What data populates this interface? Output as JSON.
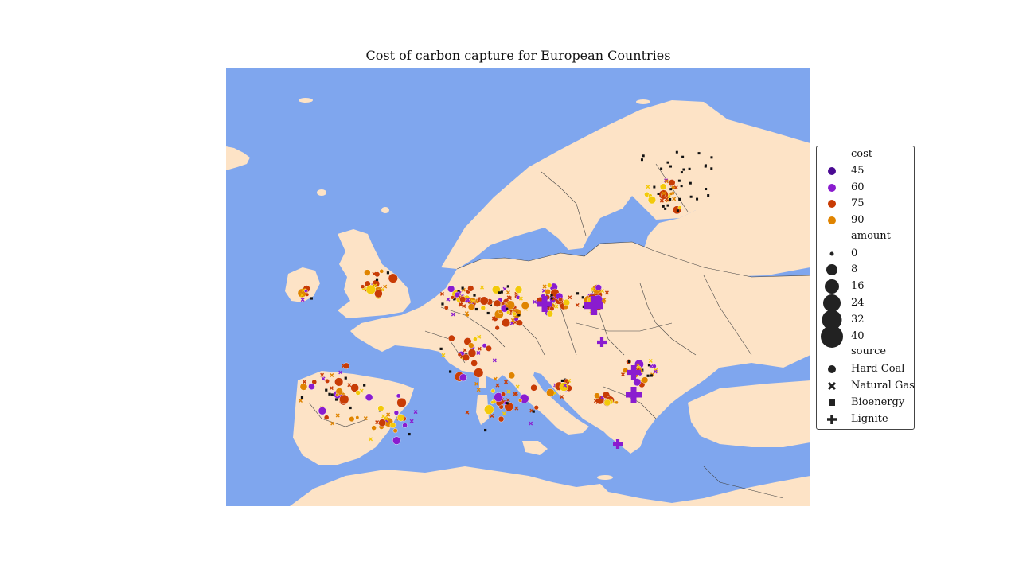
{
  "title": "Cost of carbon capture for European Countries",
  "colors": {
    "sea": "#7fa6ee",
    "land": "#fde3c6",
    "border": "#444444",
    "cost45": "#4a0a93",
    "cost60": "#8a1ccf",
    "cost75": "#c83c05",
    "cost90": "#e08400",
    "yellow": "#f3c90a",
    "bio": "#111111"
  },
  "legend": {
    "cost_title": "cost",
    "cost_items": [
      {
        "label": "45",
        "color": "#4a0a93"
      },
      {
        "label": "60",
        "color": "#8a1ccf"
      },
      {
        "label": "75",
        "color": "#c83c05"
      },
      {
        "label": "90",
        "color": "#e08400"
      }
    ],
    "amount_title": "amount",
    "amount_items": [
      {
        "label": "0",
        "value": 0
      },
      {
        "label": "8",
        "value": 8
      },
      {
        "label": "16",
        "value": 16
      },
      {
        "label": "24",
        "value": 24
      },
      {
        "label": "32",
        "value": 32
      },
      {
        "label": "40",
        "value": 40
      }
    ],
    "source_title": "source",
    "source_items": [
      {
        "label": "Hard Coal",
        "marker": "circle"
      },
      {
        "label": "Natural Gas",
        "marker": "x"
      },
      {
        "label": "Bioenergy",
        "marker": "square"
      },
      {
        "label": "Lignite",
        "marker": "plus"
      }
    ]
  }
}
